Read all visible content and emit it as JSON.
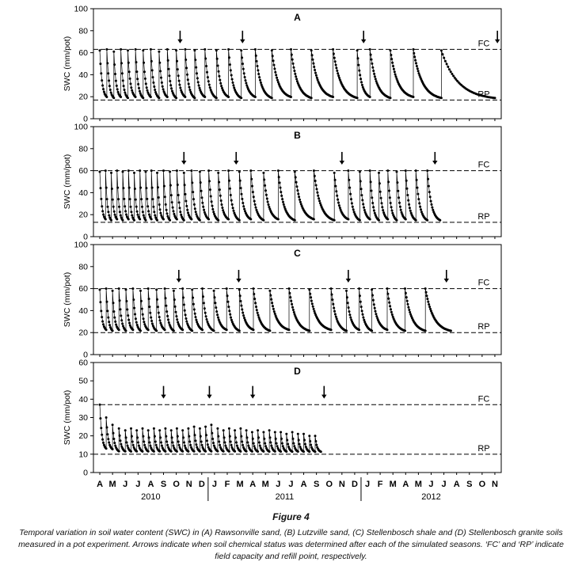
{
  "figure": {
    "title": "Figure 4",
    "caption_lines": [
      "Temporal variation in soil water content (SWC) in (A) Rawsonville sand, (B) Lutzville sand, (C) Stellenbosch shale and (D) Stellenbosch granite soils",
      "measured in a pot experiment. Arrows indicate when soil chemical status was determined after each of the simulated seasons. ‘FC’ and ‘RP’ indicate",
      "field capacity and refill point, respectively."
    ]
  },
  "axis": {
    "x_range": [
      -0.5,
      31.5
    ],
    "x_tick_labels": [
      "A",
      "M",
      "J",
      "J",
      "A",
      "S",
      "O",
      "N",
      "D",
      "J",
      "F",
      "M",
      "A",
      "M",
      "J",
      "J",
      "A",
      "S",
      "O",
      "N",
      "D",
      "J",
      "F",
      "M",
      "A",
      "M",
      "J",
      "J",
      "A",
      "S",
      "O",
      "N"
    ],
    "year_labels": [
      {
        "label": "2010",
        "x": 4
      },
      {
        "label": "2011",
        "x": 14.5
      },
      {
        "label": "2012",
        "x": 26
      }
    ],
    "year_dividers": [
      8.5,
      20.5
    ]
  },
  "chart_data": [
    {
      "type": "line",
      "label": "A",
      "soil": "Rawsonville sand",
      "ylabel": "SWC (mm/pot)",
      "ylim": [
        0,
        100
      ],
      "yticks": [
        0,
        20,
        40,
        60,
        80,
        100
      ],
      "fc": 63,
      "rp": 17,
      "fc_label": "FC",
      "rp_label": "RP",
      "x_unit": "months from Apr 2010",
      "arrows_x": [
        6.3,
        11.2,
        20.7,
        31.2
      ],
      "cycles": [
        [
          0,
          0.55,
          62,
          18
        ],
        [
          0.55,
          0.55,
          63,
          17
        ],
        [
          1.1,
          0.55,
          61,
          18
        ],
        [
          1.65,
          0.55,
          63,
          17
        ],
        [
          2.2,
          0.6,
          62,
          18
        ],
        [
          2.8,
          0.6,
          63,
          17
        ],
        [
          3.4,
          0.6,
          62,
          18
        ],
        [
          4,
          0.65,
          63,
          17
        ],
        [
          4.65,
          0.65,
          61,
          18
        ],
        [
          5.3,
          0.7,
          63,
          17
        ],
        [
          6,
          0.7,
          62,
          18
        ],
        [
          6.7,
          0.75,
          63,
          17
        ],
        [
          7.45,
          0.8,
          62,
          18
        ],
        [
          8.25,
          0.9,
          63,
          17
        ],
        [
          9.15,
          0.95,
          62,
          18
        ],
        [
          10.1,
          1,
          63,
          17
        ],
        [
          11.1,
          1.1,
          62,
          18
        ],
        [
          12.2,
          1.3,
          63,
          17
        ],
        [
          13.5,
          1.5,
          62,
          18
        ],
        [
          15,
          1.6,
          63,
          17
        ],
        [
          16.6,
          1.7,
          62,
          18
        ],
        [
          18.3,
          1.9,
          63,
          17
        ],
        [
          20.2,
          1,
          62,
          18
        ],
        [
          21.2,
          1.6,
          63,
          17
        ],
        [
          22.8,
          1.8,
          62,
          18
        ],
        [
          24.6,
          2.2,
          63,
          17
        ],
        [
          26.8,
          4.2,
          62,
          17
        ]
      ]
    },
    {
      "type": "line",
      "label": "B",
      "soil": "Lutzville sand",
      "ylabel": "SWC (mm/pot)",
      "ylim": [
        0,
        100
      ],
      "yticks": [
        0,
        20,
        40,
        60,
        80,
        100
      ],
      "fc": 60,
      "rp": 13,
      "fc_label": "FC",
      "rp_label": "RP",
      "x_unit": "months from Apr 2010",
      "arrows_x": [
        6.6,
        10.7,
        19.0,
        26.3
      ],
      "cycles": [
        [
          0,
          0.45,
          59,
          14
        ],
        [
          0.45,
          0.45,
          60,
          13
        ],
        [
          0.9,
          0.45,
          58,
          14
        ],
        [
          1.35,
          0.45,
          60,
          13
        ],
        [
          1.8,
          0.45,
          59,
          14
        ],
        [
          2.25,
          0.45,
          60,
          13
        ],
        [
          2.7,
          0.45,
          58,
          14
        ],
        [
          3.15,
          0.45,
          60,
          13
        ],
        [
          3.6,
          0.45,
          59,
          14
        ],
        [
          4.05,
          0.45,
          60,
          13
        ],
        [
          4.5,
          0.5,
          58,
          14
        ],
        [
          5,
          0.5,
          60,
          13
        ],
        [
          5.5,
          0.55,
          59,
          14
        ],
        [
          6.05,
          0.55,
          60,
          13
        ],
        [
          6.6,
          0.6,
          58,
          14
        ],
        [
          7.2,
          0.65,
          60,
          13
        ],
        [
          7.85,
          0.7,
          59,
          14
        ],
        [
          8.55,
          0.75,
          60,
          13
        ],
        [
          9.3,
          0.8,
          58,
          14
        ],
        [
          10.1,
          0.85,
          60,
          13
        ],
        [
          10.95,
          0.9,
          59,
          14
        ],
        [
          11.85,
          1,
          60,
          13
        ],
        [
          12.85,
          1.15,
          58,
          14
        ],
        [
          14,
          1.3,
          60,
          13
        ],
        [
          15.3,
          1.5,
          59,
          14
        ],
        [
          16.8,
          1.6,
          60,
          13
        ],
        [
          18.4,
          1.1,
          58,
          14
        ],
        [
          19.5,
          0.9,
          60,
          13
        ],
        [
          20.4,
          0.8,
          59,
          14
        ],
        [
          21.2,
          0.7,
          60,
          13
        ],
        [
          21.9,
          0.7,
          58,
          14
        ],
        [
          22.6,
          0.7,
          60,
          13
        ],
        [
          23.3,
          0.7,
          59,
          14
        ],
        [
          24,
          0.8,
          60,
          13
        ],
        [
          24.8,
          0.9,
          60,
          13
        ],
        [
          25.7,
          1,
          60,
          13
        ]
      ]
    },
    {
      "type": "line",
      "label": "C",
      "soil": "Stellenbosch shale",
      "ylabel": "SWC (mm/pot)",
      "ylim": [
        0,
        100
      ],
      "yticks": [
        0,
        20,
        40,
        60,
        80,
        100
      ],
      "fc": 60,
      "rp": 20,
      "fc_label": "FC",
      "rp_label": "RP",
      "x_unit": "months from Apr 2010",
      "arrows_x": [
        6.2,
        10.9,
        19.5,
        27.2
      ],
      "cycles": [
        [
          0,
          0.5,
          59,
          21
        ],
        [
          0.5,
          0.5,
          60,
          20
        ],
        [
          1,
          0.5,
          58,
          21
        ],
        [
          1.5,
          0.55,
          60,
          20
        ],
        [
          2.05,
          0.55,
          59,
          21
        ],
        [
          2.6,
          0.6,
          60,
          20
        ],
        [
          3.2,
          0.6,
          58,
          21
        ],
        [
          3.8,
          0.65,
          60,
          20
        ],
        [
          4.45,
          0.65,
          59,
          21
        ],
        [
          5.1,
          0.7,
          60,
          20
        ],
        [
          5.8,
          0.7,
          58,
          21
        ],
        [
          6.5,
          0.75,
          60,
          20
        ],
        [
          7.25,
          0.8,
          59,
          21
        ],
        [
          8.05,
          0.9,
          60,
          20
        ],
        [
          8.95,
          1,
          58,
          21
        ],
        [
          9.95,
          1,
          60,
          20
        ],
        [
          10.95,
          1.1,
          59,
          21
        ],
        [
          12.05,
          1.3,
          60,
          20
        ],
        [
          13.35,
          1.5,
          58,
          21
        ],
        [
          14.85,
          1.6,
          60,
          20
        ],
        [
          16.45,
          1.7,
          59,
          21
        ],
        [
          18.15,
          1.2,
          60,
          20
        ],
        [
          19.35,
          1,
          58,
          21
        ],
        [
          20.35,
          1,
          60,
          20
        ],
        [
          21.35,
          1.2,
          59,
          21
        ],
        [
          22.55,
          1.4,
          60,
          20
        ],
        [
          23.95,
          1.6,
          60,
          20
        ],
        [
          25.55,
          2,
          60,
          20
        ]
      ]
    },
    {
      "type": "line",
      "label": "D",
      "soil": "Stellenbosch granite",
      "ylabel": "SWC (mm/pot)",
      "ylim": [
        0,
        60
      ],
      "yticks": [
        0,
        10,
        20,
        30,
        40,
        50,
        60
      ],
      "fc": 37,
      "rp": 10,
      "fc_label": "FC",
      "rp_label": "RP",
      "x_unit": "months from Apr 2010",
      "arrows_x": [
        5.0,
        8.6,
        12.0,
        17.6
      ],
      "cycles": [
        [
          0,
          0.5,
          37,
          12
        ],
        [
          0.5,
          0.5,
          30,
          12
        ],
        [
          1,
          0.5,
          26,
          11
        ],
        [
          1.5,
          0.5,
          24,
          11
        ],
        [
          2,
          0.45,
          23,
          11
        ],
        [
          2.45,
          0.45,
          24,
          11
        ],
        [
          2.9,
          0.45,
          23,
          11
        ],
        [
          3.35,
          0.45,
          24,
          11
        ],
        [
          3.8,
          0.45,
          23,
          11
        ],
        [
          4.25,
          0.45,
          24,
          11
        ],
        [
          4.7,
          0.45,
          23,
          11
        ],
        [
          5.15,
          0.45,
          24,
          11
        ],
        [
          5.6,
          0.45,
          23,
          11
        ],
        [
          6.05,
          0.45,
          24,
          11
        ],
        [
          6.5,
          0.45,
          23,
          11
        ],
        [
          6.95,
          0.45,
          24,
          11
        ],
        [
          7.4,
          0.45,
          25,
          11
        ],
        [
          7.85,
          0.45,
          24,
          11
        ],
        [
          8.3,
          0.45,
          25,
          11
        ],
        [
          8.75,
          0.5,
          26,
          11
        ],
        [
          9.25,
          0.45,
          24,
          11
        ],
        [
          9.7,
          0.45,
          23,
          11
        ],
        [
          10.15,
          0.45,
          24,
          11
        ],
        [
          10.6,
          0.45,
          23,
          11
        ],
        [
          11.05,
          0.45,
          24,
          11
        ],
        [
          11.5,
          0.45,
          23,
          11
        ],
        [
          11.95,
          0.45,
          22,
          11
        ],
        [
          12.4,
          0.45,
          23,
          11
        ],
        [
          12.85,
          0.45,
          22,
          11
        ],
        [
          13.3,
          0.45,
          23,
          11
        ],
        [
          13.75,
          0.45,
          22,
          11
        ],
        [
          14.2,
          0.45,
          22,
          11
        ],
        [
          14.65,
          0.45,
          21,
          11
        ],
        [
          15.1,
          0.45,
          22,
          11
        ],
        [
          15.55,
          0.45,
          21,
          11
        ],
        [
          16,
          0.45,
          21,
          11
        ],
        [
          16.45,
          0.45,
          20,
          11
        ],
        [
          16.9,
          0.45,
          20,
          11
        ]
      ]
    }
  ]
}
